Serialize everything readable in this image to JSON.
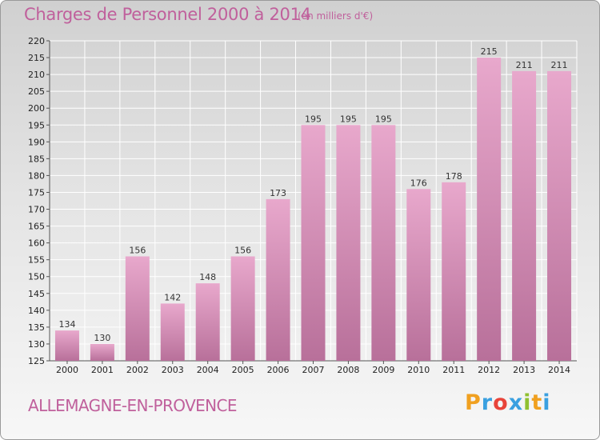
{
  "header": {
    "title": "Charges de Personnel 2000 à 2014",
    "subtitle": "(en milliers d'€)"
  },
  "footer": {
    "commune": "ALLEMAGNE-EN-PROVENCE",
    "logo": {
      "letters": [
        "P",
        "r",
        "o",
        "x",
        "i",
        "t",
        "i"
      ],
      "colors": [
        "#f0a020",
        "#3aa0e0",
        "#e8443a",
        "#3aa0e0",
        "#90c030",
        "#f0a020",
        "#3aa0e0"
      ]
    }
  },
  "chart_data": {
    "type": "bar",
    "title": "Charges de Personnel 2000 à 2014",
    "subtitle": "(en milliers d'€)",
    "categories": [
      "2000",
      "2001",
      "2002",
      "2003",
      "2004",
      "2005",
      "2006",
      "2007",
      "2008",
      "2009",
      "2010",
      "2011",
      "2012",
      "2013",
      "2014"
    ],
    "values": [
      134,
      130,
      156,
      142,
      148,
      156,
      173,
      195,
      195,
      195,
      176,
      178,
      215,
      211,
      211
    ],
    "ylim": [
      125,
      220
    ],
    "yticks": [
      125,
      130,
      135,
      140,
      145,
      150,
      155,
      160,
      165,
      170,
      175,
      180,
      185,
      190,
      195,
      200,
      205,
      210,
      215,
      220
    ],
    "grid": true,
    "colors": {
      "bar_top": "#e8a8cc",
      "bar_bottom": "#b8709a",
      "grid": "#ffffff"
    }
  }
}
